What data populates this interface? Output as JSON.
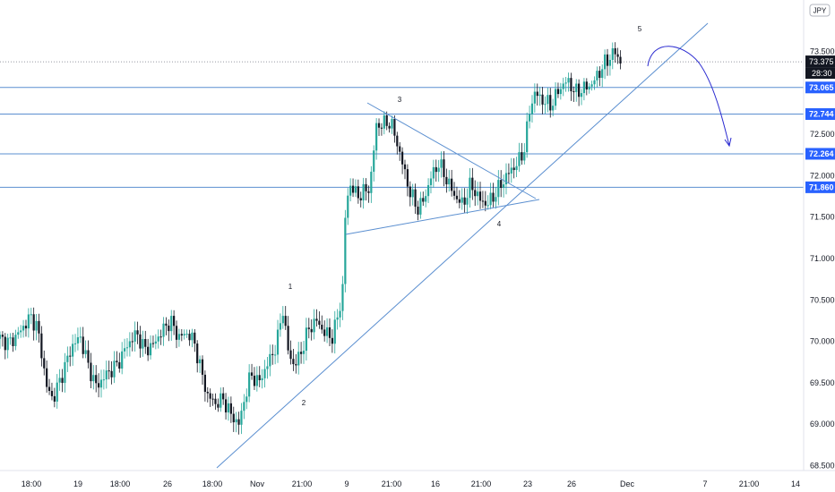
{
  "symbol": "JPY",
  "colors": {
    "up": "#26a69a",
    "down": "#131722",
    "level_line": "#5b8fd0",
    "trend_line": "#5b8fd0",
    "tag_bg": "#2962ff",
    "last_bg": "#131722",
    "projection": "#2a2ad0"
  },
  "last_price_label": "73.375",
  "countdown_label": "28:30",
  "chart_data": {
    "type": "candlestick",
    "ylim": [
      68.5,
      73.75
    ],
    "y_ticks": [
      "68.500",
      "69.000",
      "69.500",
      "70.000",
      "70.500",
      "71.000",
      "71.500",
      "72.000",
      "72.500",
      "73.500"
    ],
    "x_ticks": [
      "18:00",
      "19",
      "18:00",
      "26",
      "18:00",
      "Nov",
      "21:00",
      "9",
      "21:00",
      "16",
      "21:00",
      "23",
      "26",
      "Dec",
      "7",
      "21:00",
      "14"
    ],
    "levels": [
      "73.065",
      "72.744",
      "72.264",
      "71.860"
    ],
    "wave_labels": [
      "1",
      "2",
      "3",
      "4",
      "5"
    ],
    "price_path": [
      {
        "x": 0,
        "y": 70.03
      },
      {
        "x": 0.012,
        "y": 69.98
      },
      {
        "x": 0.025,
        "y": 70.12
      },
      {
        "x": 0.038,
        "y": 70.3
      },
      {
        "x": 0.046,
        "y": 70.18
      },
      {
        "x": 0.052,
        "y": 69.85
      },
      {
        "x": 0.058,
        "y": 69.45
      },
      {
        "x": 0.066,
        "y": 69.3
      },
      {
        "x": 0.078,
        "y": 69.62
      },
      {
        "x": 0.09,
        "y": 69.95
      },
      {
        "x": 0.1,
        "y": 70.05
      },
      {
        "x": 0.11,
        "y": 69.7
      },
      {
        "x": 0.12,
        "y": 69.45
      },
      {
        "x": 0.132,
        "y": 69.6
      },
      {
        "x": 0.146,
        "y": 69.72
      },
      {
        "x": 0.158,
        "y": 69.95
      },
      {
        "x": 0.17,
        "y": 70.1
      },
      {
        "x": 0.18,
        "y": 69.9
      },
      {
        "x": 0.19,
        "y": 69.95
      },
      {
        "x": 0.2,
        "y": 70.1
      },
      {
        "x": 0.212,
        "y": 70.25
      },
      {
        "x": 0.222,
        "y": 70.05
      },
      {
        "x": 0.234,
        "y": 70.1
      },
      {
        "x": 0.242,
        "y": 69.98
      },
      {
        "x": 0.25,
        "y": 69.65
      },
      {
        "x": 0.258,
        "y": 69.35
      },
      {
        "x": 0.268,
        "y": 69.25
      },
      {
        "x": 0.278,
        "y": 69.3
      },
      {
        "x": 0.288,
        "y": 69.1
      },
      {
        "x": 0.298,
        "y": 69.0
      },
      {
        "x": 0.304,
        "y": 69.3
      },
      {
        "x": 0.312,
        "y": 69.6
      },
      {
        "x": 0.322,
        "y": 69.5
      },
      {
        "x": 0.334,
        "y": 69.75
      },
      {
        "x": 0.344,
        "y": 69.95
      },
      {
        "x": 0.352,
        "y": 70.4
      },
      {
        "x": 0.358,
        "y": 69.9
      },
      {
        "x": 0.366,
        "y": 69.7
      },
      {
        "x": 0.374,
        "y": 69.85
      },
      {
        "x": 0.384,
        "y": 70.15
      },
      {
        "x": 0.394,
        "y": 70.25
      },
      {
        "x": 0.404,
        "y": 70.1
      },
      {
        "x": 0.414,
        "y": 70.05
      },
      {
        "x": 0.42,
        "y": 70.3
      },
      {
        "x": 0.426,
        "y": 70.55
      },
      {
        "x": 0.43,
        "y": 71.6
      },
      {
        "x": 0.436,
        "y": 71.9
      },
      {
        "x": 0.444,
        "y": 71.75
      },
      {
        "x": 0.452,
        "y": 71.8
      },
      {
        "x": 0.46,
        "y": 71.85
      },
      {
        "x": 0.464,
        "y": 72.2
      },
      {
        "x": 0.468,
        "y": 72.6
      },
      {
        "x": 0.476,
        "y": 72.62
      },
      {
        "x": 0.486,
        "y": 72.65
      },
      {
        "x": 0.494,
        "y": 72.4
      },
      {
        "x": 0.502,
        "y": 72.1
      },
      {
        "x": 0.51,
        "y": 71.8
      },
      {
        "x": 0.52,
        "y": 71.6
      },
      {
        "x": 0.528,
        "y": 71.72
      },
      {
        "x": 0.536,
        "y": 71.98
      },
      {
        "x": 0.546,
        "y": 72.15
      },
      {
        "x": 0.556,
        "y": 71.95
      },
      {
        "x": 0.566,
        "y": 71.75
      },
      {
        "x": 0.576,
        "y": 71.65
      },
      {
        "x": 0.586,
        "y": 71.9
      },
      {
        "x": 0.596,
        "y": 71.72
      },
      {
        "x": 0.606,
        "y": 71.65
      },
      {
        "x": 0.614,
        "y": 71.75
      },
      {
        "x": 0.624,
        "y": 71.9
      },
      {
        "x": 0.634,
        "y": 72.05
      },
      {
        "x": 0.644,
        "y": 72.15
      },
      {
        "x": 0.652,
        "y": 72.3
      },
      {
        "x": 0.66,
        "y": 72.85
      },
      {
        "x": 0.666,
        "y": 73.0
      },
      {
        "x": 0.676,
        "y": 72.9
      },
      {
        "x": 0.686,
        "y": 72.85
      },
      {
        "x": 0.696,
        "y": 73.05
      },
      {
        "x": 0.706,
        "y": 73.15
      },
      {
        "x": 0.716,
        "y": 73.0
      },
      {
        "x": 0.726,
        "y": 73.05
      },
      {
        "x": 0.736,
        "y": 73.1
      },
      {
        "x": 0.746,
        "y": 73.25
      },
      {
        "x": 0.752,
        "y": 73.35
      },
      {
        "x": 0.758,
        "y": 73.42
      },
      {
        "x": 0.765,
        "y": 73.5
      },
      {
        "x": 0.772,
        "y": 73.375
      }
    ]
  }
}
